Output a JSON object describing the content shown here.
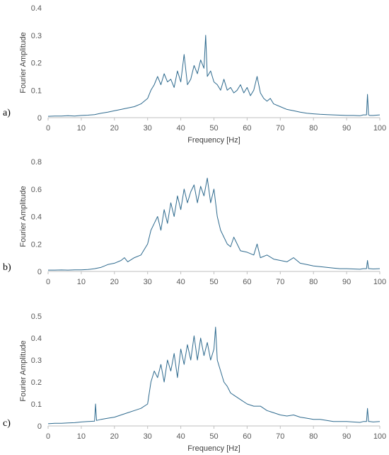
{
  "colors": {
    "series": "#2e6a8e",
    "axis": "#bfbfbf",
    "text": "#595959"
  },
  "chart_data": [
    {
      "panel_label": "a)",
      "type": "line",
      "xlabel": "Frequency [Hz]",
      "ylabel": "Fourier Amplitude",
      "xlim": [
        0,
        100
      ],
      "ylim": [
        0,
        0.4
      ],
      "x_ticks": [
        "0",
        "10",
        "20",
        "30",
        "40",
        "50",
        "60",
        "70",
        "80",
        "90",
        "100"
      ],
      "y_ticks": [
        "0",
        "0.1",
        "0.2",
        "0.3",
        "0.4"
      ],
      "grid": false,
      "legend": "none",
      "series": [
        {
          "x": [
            0,
            2,
            4,
            6,
            8,
            10,
            12,
            14,
            16,
            18,
            20,
            22,
            24,
            26,
            28,
            30,
            31,
            32,
            33,
            34,
            35,
            36,
            37,
            38,
            39,
            40,
            41,
            42,
            43,
            44,
            45,
            46,
            47,
            47.5,
            48,
            49,
            50,
            51,
            52,
            53,
            54,
            55,
            56,
            57,
            58,
            59,
            60,
            61,
            62,
            63,
            64,
            65,
            66,
            67,
            68,
            70,
            72,
            74,
            76,
            78,
            80,
            82,
            84,
            86,
            88,
            90,
            92,
            94,
            95,
            96,
            96.3,
            96.6,
            97,
            98,
            100
          ],
          "y": [
            0.005,
            0.006,
            0.006,
            0.007,
            0.006,
            0.008,
            0.009,
            0.011,
            0.016,
            0.02,
            0.025,
            0.03,
            0.035,
            0.04,
            0.05,
            0.07,
            0.1,
            0.12,
            0.15,
            0.12,
            0.16,
            0.13,
            0.14,
            0.11,
            0.17,
            0.13,
            0.23,
            0.12,
            0.14,
            0.19,
            0.16,
            0.21,
            0.18,
            0.3,
            0.15,
            0.17,
            0.13,
            0.12,
            0.1,
            0.14,
            0.1,
            0.11,
            0.09,
            0.1,
            0.12,
            0.09,
            0.11,
            0.08,
            0.1,
            0.15,
            0.09,
            0.07,
            0.06,
            0.07,
            0.05,
            0.04,
            0.03,
            0.025,
            0.02,
            0.016,
            0.014,
            0.012,
            0.011,
            0.01,
            0.009,
            0.008,
            0.008,
            0.007,
            0.01,
            0.01,
            0.085,
            0.01,
            0.008,
            0.008,
            0.01
          ]
        }
      ]
    },
    {
      "panel_label": "b)",
      "type": "line",
      "xlabel": "",
      "ylabel": "Fourier Amplitude",
      "xlim": [
        0,
        100
      ],
      "ylim": [
        0,
        0.8
      ],
      "x_ticks": [
        "0",
        "10",
        "20",
        "30",
        "40",
        "50",
        "60",
        "70",
        "80",
        "90",
        "100"
      ],
      "y_ticks": [
        "0",
        "0.2",
        "0.4",
        "0.6",
        "0.8"
      ],
      "grid": false,
      "legend": "none",
      "series": [
        {
          "x": [
            0,
            2,
            4,
            6,
            8,
            10,
            12,
            14,
            16,
            18,
            20,
            22,
            23,
            24,
            26,
            28,
            30,
            31,
            32,
            33,
            34,
            35,
            36,
            37,
            38,
            39,
            40,
            41,
            42,
            43,
            44,
            45,
            46,
            47,
            48,
            49,
            50,
            51,
            52,
            53,
            54,
            55,
            56,
            58,
            60,
            62,
            63,
            64,
            66,
            68,
            70,
            72,
            74,
            76,
            78,
            80,
            82,
            84,
            86,
            88,
            90,
            92,
            94,
            95,
            96,
            96.3,
            96.6,
            97,
            98,
            100
          ],
          "y": [
            0.01,
            0.01,
            0.011,
            0.01,
            0.012,
            0.012,
            0.014,
            0.02,
            0.03,
            0.05,
            0.06,
            0.08,
            0.1,
            0.07,
            0.1,
            0.12,
            0.2,
            0.3,
            0.35,
            0.4,
            0.3,
            0.45,
            0.35,
            0.5,
            0.4,
            0.55,
            0.45,
            0.6,
            0.5,
            0.58,
            0.63,
            0.5,
            0.62,
            0.55,
            0.68,
            0.5,
            0.6,
            0.4,
            0.3,
            0.25,
            0.2,
            0.18,
            0.25,
            0.15,
            0.14,
            0.12,
            0.2,
            0.1,
            0.12,
            0.09,
            0.08,
            0.07,
            0.1,
            0.06,
            0.05,
            0.04,
            0.035,
            0.03,
            0.025,
            0.02,
            0.02,
            0.018,
            0.016,
            0.02,
            0.02,
            0.08,
            0.02,
            0.02,
            0.018,
            0.02
          ]
        }
      ]
    },
    {
      "panel_label": "c)",
      "type": "line",
      "xlabel": "Frequency [Hz]",
      "ylabel": "Fourier Amplitude",
      "xlim": [
        0,
        100
      ],
      "ylim": [
        0,
        0.5
      ],
      "x_ticks": [
        "0",
        "10",
        "20",
        "30",
        "40",
        "50",
        "60",
        "70",
        "80",
        "90",
        "100"
      ],
      "y_ticks": [
        "0",
        "0.1",
        "0.2",
        "0.3",
        "0.4",
        "0.5"
      ],
      "grid": false,
      "legend": "none",
      "series": [
        {
          "x": [
            0,
            2,
            4,
            6,
            8,
            10,
            12,
            14,
            14.3,
            14.6,
            16,
            18,
            20,
            22,
            24,
            26,
            28,
            30,
            31,
            32,
            33,
            34,
            35,
            36,
            37,
            38,
            39,
            40,
            41,
            42,
            43,
            44,
            45,
            46,
            47,
            48,
            49,
            50,
            50.5,
            51,
            52,
            53,
            54,
            55,
            56,
            58,
            60,
            62,
            64,
            66,
            68,
            70,
            72,
            74,
            76,
            78,
            80,
            82,
            84,
            86,
            88,
            90,
            92,
            94,
            95,
            96,
            96.3,
            96.6,
            97,
            98,
            100
          ],
          "y": [
            0.01,
            0.012,
            0.012,
            0.014,
            0.015,
            0.018,
            0.02,
            0.022,
            0.1,
            0.025,
            0.03,
            0.035,
            0.04,
            0.05,
            0.06,
            0.07,
            0.08,
            0.1,
            0.2,
            0.25,
            0.22,
            0.28,
            0.2,
            0.3,
            0.25,
            0.33,
            0.22,
            0.35,
            0.28,
            0.37,
            0.3,
            0.41,
            0.3,
            0.4,
            0.32,
            0.38,
            0.3,
            0.35,
            0.45,
            0.3,
            0.25,
            0.2,
            0.18,
            0.15,
            0.14,
            0.12,
            0.1,
            0.09,
            0.09,
            0.07,
            0.06,
            0.05,
            0.045,
            0.05,
            0.04,
            0.035,
            0.03,
            0.03,
            0.025,
            0.02,
            0.02,
            0.02,
            0.018,
            0.016,
            0.02,
            0.02,
            0.08,
            0.02,
            0.02,
            0.018,
            0.02
          ]
        }
      ]
    }
  ]
}
